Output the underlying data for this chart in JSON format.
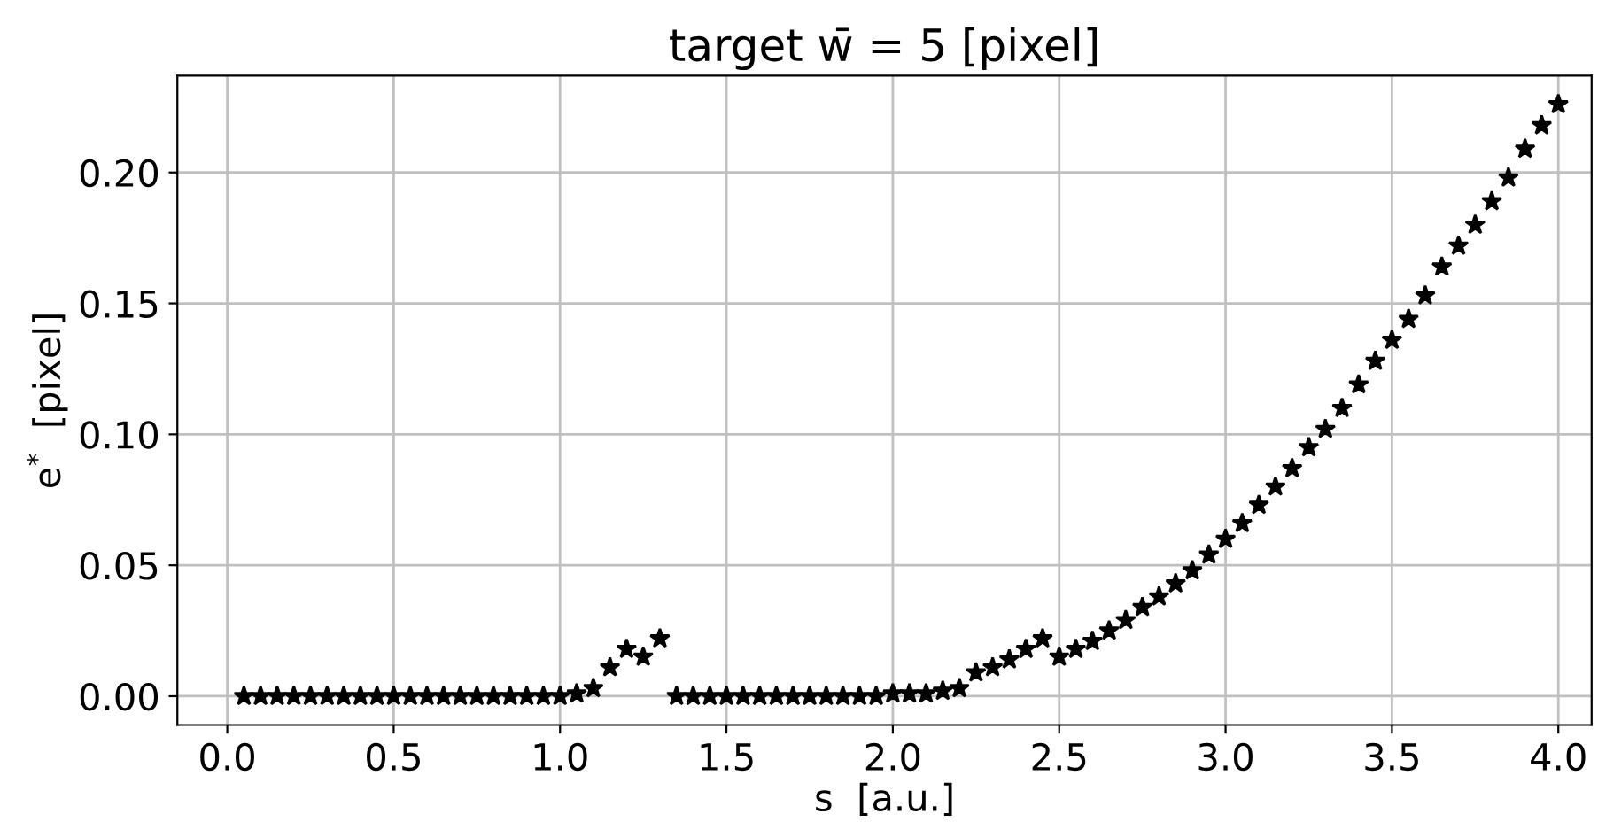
{
  "chart_data": {
    "type": "scatter",
    "title": "target w̄ = 5 [pixel]",
    "xlabel": "s  [a.u.]",
    "ylabel": "e$^{*}$  [pixel]",
    "x": [
      0.05,
      0.1,
      0.15,
      0.2,
      0.25,
      0.3,
      0.35,
      0.4,
      0.45,
      0.5,
      0.55,
      0.6,
      0.65,
      0.7,
      0.75,
      0.8,
      0.85,
      0.9,
      0.95,
      1.0,
      1.05,
      1.1,
      1.15,
      1.2,
      1.25,
      1.3,
      1.35,
      1.4,
      1.45,
      1.5,
      1.55,
      1.6,
      1.65,
      1.7,
      1.75,
      1.8,
      1.85,
      1.9,
      1.95,
      2.0,
      2.05,
      2.1,
      2.15,
      2.2,
      2.25,
      2.3,
      2.35,
      2.4,
      2.45,
      2.5,
      2.55,
      2.6,
      2.65,
      2.7,
      2.75,
      2.8,
      2.85,
      2.9,
      2.95,
      3.0,
      3.05,
      3.1,
      3.15,
      3.2,
      3.25,
      3.3,
      3.35,
      3.4,
      3.45,
      3.5,
      3.55,
      3.6,
      3.65,
      3.7,
      3.75,
      3.8,
      3.85,
      3.9,
      3.95,
      4.0
    ],
    "series": [
      {
        "color": "#000000",
        "values": [
          0.0,
          0.0,
          0.0,
          0.0,
          0.0,
          0.0,
          0.0,
          0.0,
          0.0,
          0.0,
          0.0,
          0.0,
          0.0,
          0.0,
          0.0,
          0.0,
          0.0,
          0.0,
          0.0,
          0.0,
          0.001,
          0.003,
          0.011,
          0.018,
          0.015,
          0.022,
          0.0,
          0.0,
          0.0,
          0.0,
          0.0,
          0.0,
          0.0,
          0.0,
          0.0,
          0.0,
          0.0,
          0.0,
          0.0,
          0.001,
          0.001,
          0.001,
          0.002,
          0.003,
          0.009,
          0.011,
          0.014,
          0.018,
          0.022,
          0.015,
          0.018,
          0.021,
          0.025,
          0.029,
          0.034,
          0.038,
          0.043,
          0.048,
          0.054,
          0.06,
          0.066,
          0.073,
          0.08,
          0.087,
          0.095,
          0.102,
          0.11,
          0.119,
          0.128,
          0.136,
          0.144,
          0.153,
          0.164,
          0.172,
          0.18,
          0.189,
          0.198,
          0.209,
          0.218,
          0.226
        ]
      }
    ],
    "xlim": [
      -0.15,
      4.1
    ],
    "ylim": [
      -0.011,
      0.237
    ],
    "xticks": [
      {
        "value": 0,
        "label": "0.0"
      },
      0.5,
      {
        "value": 1,
        "label": "1.0"
      },
      1.5,
      {
        "value": 2,
        "label": "2.0"
      },
      2.5,
      {
        "value": 3,
        "label": "3.0"
      },
      3.5,
      {
        "value": 4,
        "label": "4.0"
      }
    ],
    "yticks": [
      {
        "value": 0,
        "label": "0.00"
      },
      0.05,
      {
        "value": 0.1,
        "label": "0.10"
      },
      0.15,
      {
        "value": 0.2,
        "label": "0.20"
      }
    ],
    "grid": true,
    "marker": "star"
  }
}
